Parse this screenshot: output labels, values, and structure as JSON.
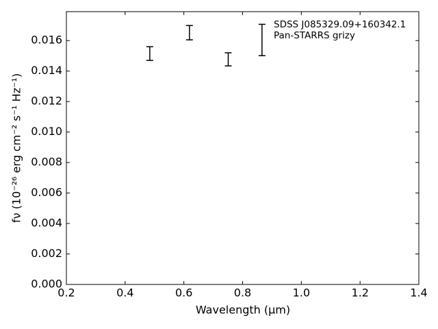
{
  "chart_data": {
    "type": "errorbar",
    "xlabel": "Wavelength (μm)",
    "ylabel": "fν (10⁻²⁶ erg cm⁻² s⁻¹ Hz⁻¹)",
    "series": [
      {
        "name": "SDSS J085329.09+160342.1\nPan-STARRS grizy",
        "color": "#000000",
        "x": [
          0.484,
          0.619,
          0.751,
          0.866
        ],
        "values": [
          0.01515,
          0.01652,
          0.01477,
          0.01604
        ],
        "errors": [
          0.00045,
          0.00047,
          0.00043,
          0.00103
        ]
      }
    ],
    "xlim": [
      0.2,
      1.4
    ],
    "xticks": [
      0.2,
      0.4,
      0.6,
      0.8,
      {
        "value": 1,
        "label": "1.0"
      },
      1.2,
      1.4
    ],
    "ylim": [
      0,
      0.0179
    ],
    "yticks": [
      {
        "value": 0,
        "label": "0.000"
      },
      {
        "value": 0.002,
        "label": "0.002"
      },
      {
        "value": 0.004,
        "label": "0.004"
      },
      {
        "value": 0.006,
        "label": "0.006"
      },
      {
        "value": 0.008,
        "label": "0.008"
      },
      {
        "value": 0.01,
        "label": "0.010"
      },
      {
        "value": 0.012,
        "label": "0.012"
      },
      {
        "value": 0.014,
        "label": "0.014"
      },
      {
        "value": 0.016,
        "label": "0.016"
      }
    ],
    "legend": "upper right"
  }
}
